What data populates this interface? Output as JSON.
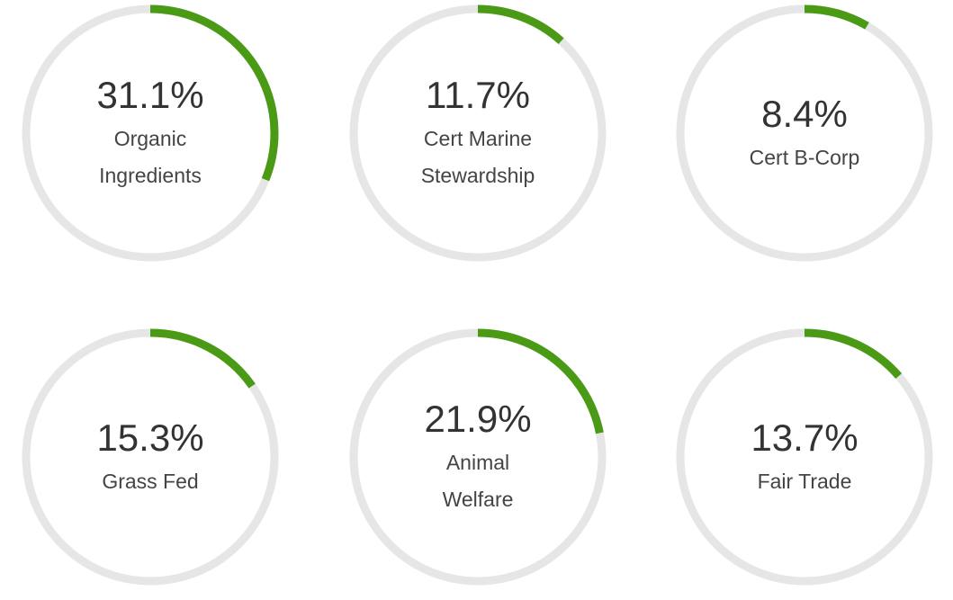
{
  "chart_data": {
    "type": "gauge",
    "max": 100,
    "unit": "%",
    "items": [
      {
        "value": 31.1,
        "value_label": "31.1%",
        "label_lines": [
          "Organic",
          "Ingredients"
        ]
      },
      {
        "value": 11.7,
        "value_label": "11.7%",
        "label_lines": [
          "Cert Marine",
          "Stewardship"
        ]
      },
      {
        "value": 8.4,
        "value_label": "8.4%",
        "label_lines": [
          "Cert B-Corp"
        ]
      },
      {
        "value": 15.3,
        "value_label": "15.3%",
        "label_lines": [
          "Grass Fed"
        ]
      },
      {
        "value": 21.9,
        "value_label": "21.9%",
        "label_lines": [
          "Animal",
          "Welfare"
        ]
      },
      {
        "value": 13.7,
        "value_label": "13.7%",
        "label_lines": [
          "Fair Trade"
        ]
      }
    ]
  },
  "colors": {
    "progress": "#4a9a16",
    "track": "#e6e6e6",
    "value_text": "#333333",
    "label_text": "#444444"
  }
}
